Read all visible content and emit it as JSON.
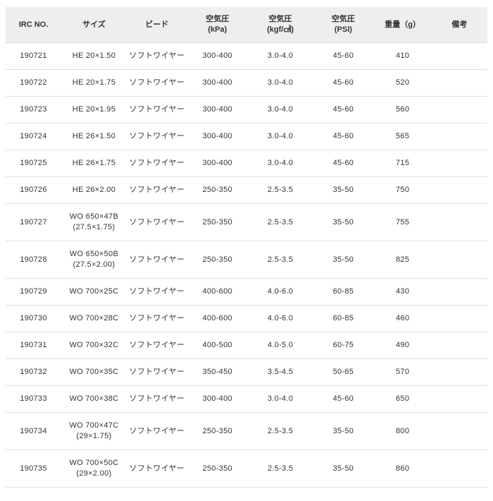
{
  "colors": {
    "header_bg": "#eeeeee",
    "header_border": "#d9d9d9",
    "row_border": "#e0e0e0",
    "text": "#333333"
  },
  "table": {
    "columns": [
      {
        "label": "IRC NO.",
        "sub": ""
      },
      {
        "label": "サイズ",
        "sub": ""
      },
      {
        "label": "ビード",
        "sub": ""
      },
      {
        "label": "空気圧",
        "sub": "(kPa)"
      },
      {
        "label": "空気圧",
        "sub": "(kgf/㎠)"
      },
      {
        "label": "空気圧",
        "sub": "(PSI)"
      },
      {
        "label": "重量（g）",
        "sub": ""
      },
      {
        "label": "備考",
        "sub": ""
      }
    ],
    "rows": [
      {
        "irc_no": "190721",
        "size": "HE 20×1.50",
        "size_note": "",
        "bead": "ソフトワイヤー",
        "kpa": "300-400",
        "kgf": "3.0-4.0",
        "psi": "45-60",
        "weight": "410",
        "remarks": ""
      },
      {
        "irc_no": "190722",
        "size": "HE 20×1.75",
        "size_note": "",
        "bead": "ソフトワイヤー",
        "kpa": "300-400",
        "kgf": "3.0-4.0",
        "psi": "45-60",
        "weight": "520",
        "remarks": ""
      },
      {
        "irc_no": "190723",
        "size": "HE 20×1.95",
        "size_note": "",
        "bead": "ソフトワイヤー",
        "kpa": "300-400",
        "kgf": "3.0-4.0",
        "psi": "45-60",
        "weight": "560",
        "remarks": ""
      },
      {
        "irc_no": "190724",
        "size": "HE 26×1.50",
        "size_note": "",
        "bead": "ソフトワイヤー",
        "kpa": "300-400",
        "kgf": "3.0-4.0",
        "psi": "45-60",
        "weight": "565",
        "remarks": ""
      },
      {
        "irc_no": "190725",
        "size": "HE 26×1.75",
        "size_note": "",
        "bead": "ソフトワイヤー",
        "kpa": "300-400",
        "kgf": "3.0-4.0",
        "psi": "45-60",
        "weight": "715",
        "remarks": ""
      },
      {
        "irc_no": "190726",
        "size": "HE 26×2.00",
        "size_note": "",
        "bead": "ソフトワイヤー",
        "kpa": "250-350",
        "kgf": "2.5-3.5",
        "psi": "35-50",
        "weight": "750",
        "remarks": ""
      },
      {
        "irc_no": "190727",
        "size": "WO 650×47B",
        "size_note": "(27.5×1.75)",
        "bead": "ソフトワイヤー",
        "kpa": "250-350",
        "kgf": "2.5-3.5",
        "psi": "35-50",
        "weight": "755",
        "remarks": ""
      },
      {
        "irc_no": "190728",
        "size": "WO 650×50B",
        "size_note": "(27.5×2.00)",
        "bead": "ソフトワイヤー",
        "kpa": "250-350",
        "kgf": "2.5-3.5",
        "psi": "35-50",
        "weight": "825",
        "remarks": ""
      },
      {
        "irc_no": "190729",
        "size": "WO 700×25C",
        "size_note": "",
        "bead": "ソフトワイヤー",
        "kpa": "400-600",
        "kgf": "4.0-6.0",
        "psi": "60-85",
        "weight": "430",
        "remarks": ""
      },
      {
        "irc_no": "190730",
        "size": "WO 700×28C",
        "size_note": "",
        "bead": "ソフトワイヤー",
        "kpa": "400-600",
        "kgf": "4.0-6.0",
        "psi": "60-85",
        "weight": "460",
        "remarks": ""
      },
      {
        "irc_no": "190731",
        "size": "WO 700×32C",
        "size_note": "",
        "bead": "ソフトワイヤー",
        "kpa": "400-500",
        "kgf": "4.0-5.0",
        "psi": "60-75",
        "weight": "490",
        "remarks": ""
      },
      {
        "irc_no": "190732",
        "size": "WO 700×35C",
        "size_note": "",
        "bead": "ソフトワイヤー",
        "kpa": "350-450",
        "kgf": "3.5-4.5",
        "psi": "50-65",
        "weight": "570",
        "remarks": ""
      },
      {
        "irc_no": "190733",
        "size": "WO 700×38C",
        "size_note": "",
        "bead": "ソフトワイヤー",
        "kpa": "300-400",
        "kgf": "3.0-4.0",
        "psi": "45-60",
        "weight": "650",
        "remarks": ""
      },
      {
        "irc_no": "190734",
        "size": "WO 700×47C",
        "size_note": "(29×1.75)",
        "bead": "ソフトワイヤー",
        "kpa": "250-350",
        "kgf": "2.5-3.5",
        "psi": "35-50",
        "weight": "800",
        "remarks": ""
      },
      {
        "irc_no": "190735",
        "size": "WO 700×50C",
        "size_note": "(29×2.00)",
        "bead": "ソフトワイヤー",
        "kpa": "250-350",
        "kgf": "2.5-3.5",
        "psi": "35-50",
        "weight": "860",
        "remarks": ""
      }
    ]
  }
}
